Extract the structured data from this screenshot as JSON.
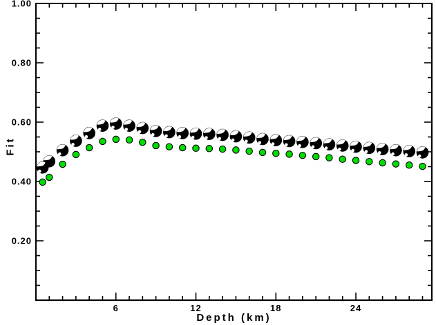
{
  "figure": {
    "background": "#ffffff",
    "frame_color": "#000000",
    "text_color": "#000000"
  },
  "chart_data": {
    "type": "scatter",
    "title": "",
    "xlabel": "Depth (km)",
    "ylabel": "Fit",
    "xlim": [
      0,
      29.7
    ],
    "ylim": [
      0.0,
      1.0
    ],
    "grid": false,
    "legend": "none",
    "x_major_ticks": [
      6,
      12,
      18,
      24
    ],
    "x_tick_labels": [
      "6",
      "12",
      "18",
      "24"
    ],
    "x_minor_step": 1,
    "y_major_ticks": [
      0.2,
      0.4,
      0.6,
      0.8,
      1.0
    ],
    "y_tick_labels": [
      "0.20",
      "0.40",
      "0.60",
      "0.80",
      "1.00"
    ],
    "y_minor_step": 0.05,
    "x": [
      0.5,
      1,
      2,
      3,
      4,
      5,
      6,
      7,
      8,
      9,
      10,
      11,
      12,
      13,
      14,
      15,
      16,
      17,
      18,
      19,
      20,
      21,
      22,
      23,
      24,
      25,
      26,
      27,
      28,
      29
    ],
    "series": [
      {
        "name": "beachball-fit",
        "marker": "beachball",
        "color": "#000000",
        "values": [
          0.447,
          0.468,
          0.505,
          0.537,
          0.563,
          0.588,
          0.595,
          0.588,
          0.58,
          0.57,
          0.566,
          0.563,
          0.561,
          0.56,
          0.557,
          0.552,
          0.548,
          0.543,
          0.539,
          0.536,
          0.533,
          0.529,
          0.525,
          0.521,
          0.517,
          0.513,
          0.509,
          0.505,
          0.502,
          0.498
        ]
      },
      {
        "name": "dot-fit",
        "marker": "circle",
        "color": "#00dd00",
        "values": [
          0.398,
          0.414,
          0.458,
          0.491,
          0.514,
          0.535,
          0.542,
          0.54,
          0.532,
          0.521,
          0.517,
          0.514,
          0.512,
          0.511,
          0.509,
          0.506,
          0.502,
          0.498,
          0.495,
          0.492,
          0.488,
          0.484,
          0.48,
          0.475,
          0.471,
          0.467,
          0.463,
          0.459,
          0.455,
          0.451
        ]
      }
    ]
  }
}
